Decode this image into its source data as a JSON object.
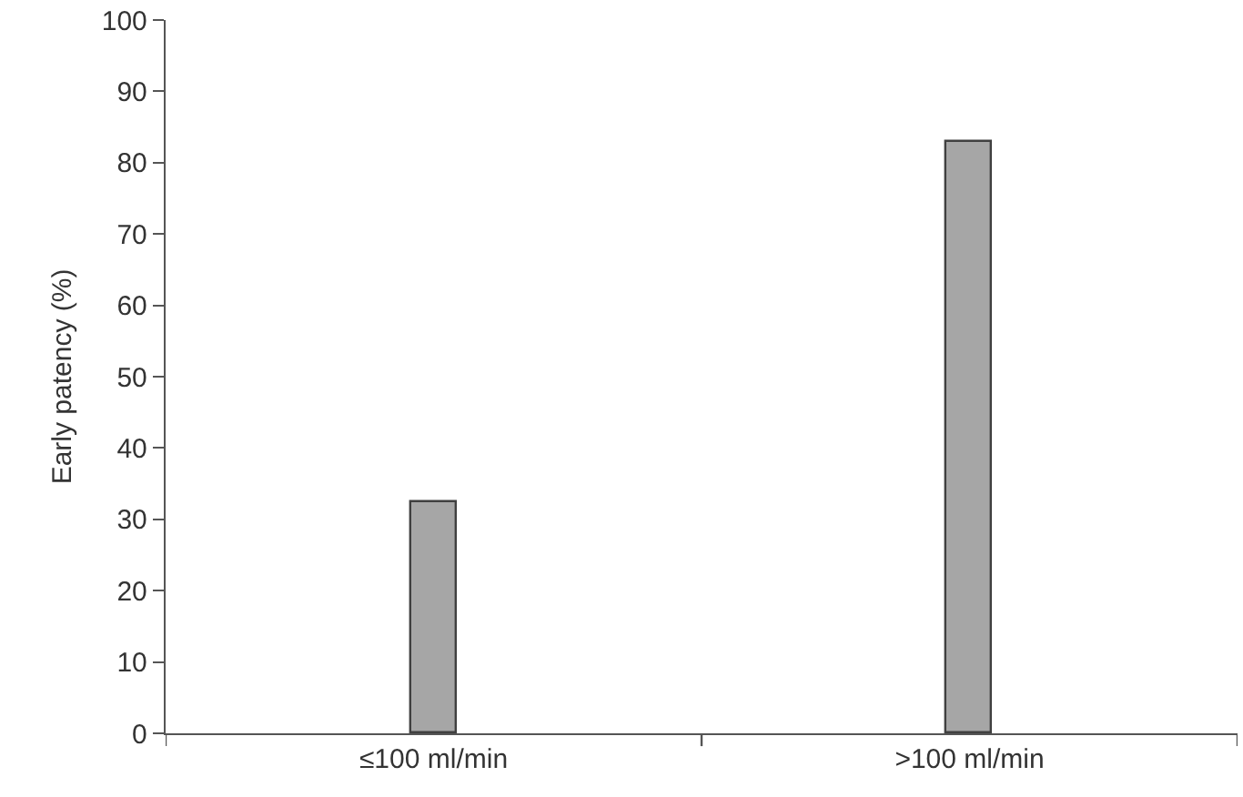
{
  "chart_data": {
    "type": "bar",
    "categories": [
      "≤100 ml/min",
      ">100 ml/min"
    ],
    "values": [
      32.5,
      83
    ],
    "color": "#a6a6a6",
    "ylabel": "Early patency (%)",
    "ylim": [
      0,
      100
    ],
    "yticks": [
      0,
      10,
      20,
      30,
      40,
      50,
      60,
      70,
      80,
      90,
      100
    ]
  }
}
